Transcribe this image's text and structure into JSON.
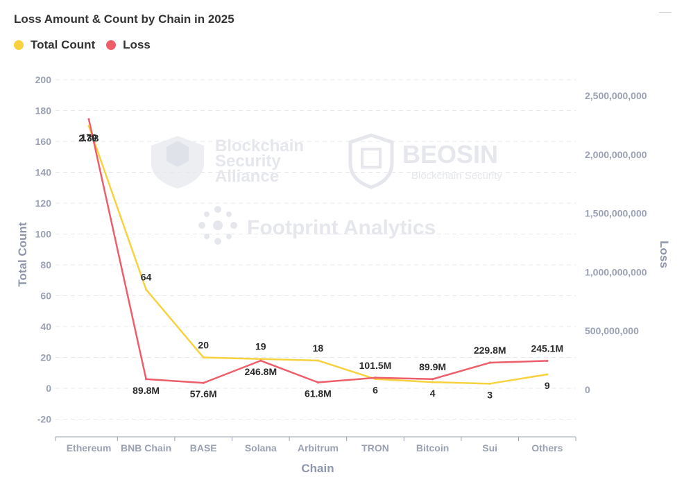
{
  "title": "Loss Amount & Count by Chain in 2025",
  "legend": [
    {
      "label": "Total Count",
      "color": "#f7d23e"
    },
    {
      "label": "Loss",
      "color": "#ee5e6a"
    }
  ],
  "watermarks": {
    "bsa": "Blockchain Security Alliance",
    "bsa_lines": [
      "Blockchain",
      "Security",
      "Alliance"
    ],
    "beosin": "BEOSIN",
    "beosin_sub": "Blockchain Security",
    "footprint": "Footprint Analytics"
  },
  "chart_data": {
    "type": "line",
    "title": "Loss Amount & Count by Chain in 2025",
    "xlabel": "Chain",
    "ylabel_left": "Total Count",
    "ylabel_right": "Loss",
    "categories": [
      "Ethereum",
      "BNB Chain",
      "BASE",
      "Solana",
      "Arbitrum",
      "TRON",
      "Bitcoin",
      "Sui",
      "Others"
    ],
    "left_axis": {
      "min": -20,
      "max": 200,
      "ticks": [
        200,
        180,
        160,
        140,
        120,
        100,
        80,
        60,
        40,
        20,
        0,
        -20
      ]
    },
    "right_axis": {
      "min": 0,
      "max": 2500000000,
      "ticks": [
        "2,500,000,000",
        "2,000,000,000",
        "1,500,000,000",
        "1,000,000,000",
        "500,000,000",
        "0"
      ]
    },
    "grid": true,
    "legend_position": "top-left",
    "series": [
      {
        "name": "Total Count",
        "axis": "left",
        "color": "#f7d23e",
        "values": [
          170,
          64,
          20,
          19,
          18,
          6,
          4,
          3,
          9
        ],
        "labels": [
          "170",
          "64",
          "20",
          "19",
          "18",
          "6",
          "4",
          "3",
          "9"
        ]
      },
      {
        "name": "Loss",
        "axis": "right",
        "color": "#ee5e6a",
        "values": [
          2300000000,
          89800000,
          57600000,
          246800000,
          61800000,
          101500000,
          89900000,
          229800000,
          245100000
        ],
        "labels": [
          "2.3B",
          "89.8M",
          "57.6M",
          "246.8M",
          "61.8M",
          "101.5M",
          "89.9M",
          "229.8M",
          "245.1M"
        ]
      }
    ]
  }
}
